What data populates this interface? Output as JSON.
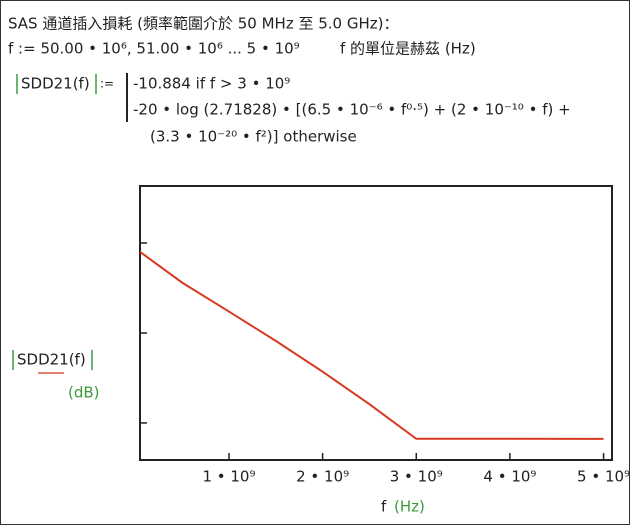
{
  "heading": "SAS 通道插入損耗 (頻率範圍介於 50 MHz 至 5.0 GHz)：",
  "range_def": "f := 50.00 • 10⁶, 51.00 • 10⁶ ... 5 • 10⁹",
  "unit_note": "f 的單位是赫茲 (Hz)",
  "definition": {
    "name": "SDD21(f)",
    "assign": ":=",
    "case1": "-10.884  if  f > 3 • 10⁹",
    "case2": "-20 • log (2.71828) • [(6.5 • 10⁻⁶ • f⁰·⁵) + (2 • 10⁻¹⁰ • f) +",
    "case2_cont": "(3.3 • 10⁻²⁰ • f²)] otherwise"
  },
  "chart_data": {
    "type": "line",
    "y_label": "SDD21(f)",
    "y_unit": "(dB)",
    "x_label": "f",
    "x_unit": "(Hz)",
    "x": [
      50000000,
      500000000,
      1000000000,
      1500000000,
      2000000000,
      2500000000,
      3000000000,
      5000000000
    ],
    "series": [
      {
        "color": "#d8381f",
        "values": [
          -0.49,
          -2.2,
          -3.81,
          -5.44,
          -7.15,
          -8.96,
          -10.88,
          -10.884
        ]
      }
    ],
    "xlim": [
      50000000,
      5090000000
    ],
    "ylim": [
      -12.06,
      3.17
    ],
    "xticks": [
      {
        "value": 1000000000,
        "label": "1 • 10⁹"
      },
      {
        "value": 2000000000,
        "label": "2 • 10⁹"
      },
      {
        "value": 3000000000,
        "label": "3 • 10⁹"
      },
      {
        "value": 4000000000,
        "label": "4 • 10⁹"
      },
      {
        "value": 5000000000,
        "label": "5 • 10⁹"
      }
    ],
    "yticks": [
      0,
      -5,
      -10
    ]
  }
}
